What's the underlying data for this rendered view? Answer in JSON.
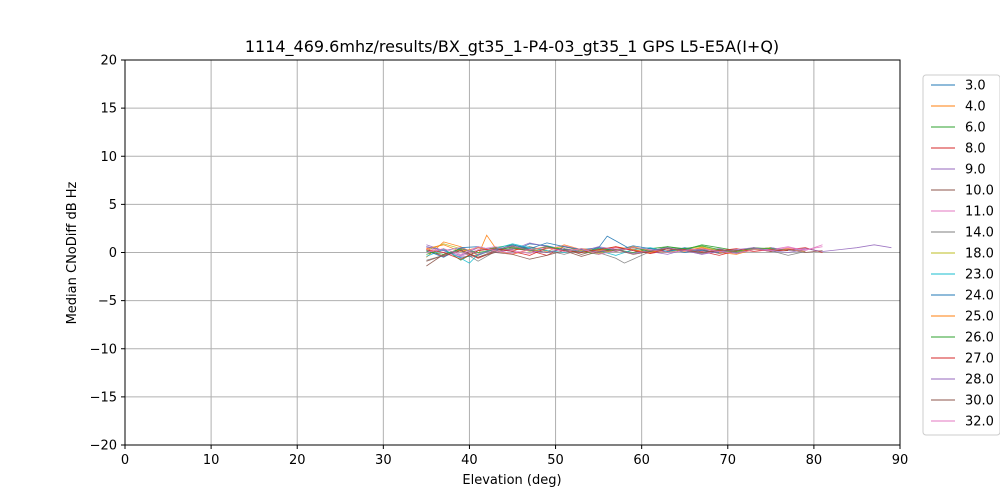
{
  "chart_data": {
    "type": "line",
    "title": "1114_469.6mhz/results/BX_gt35_1-P4-03_gt35_1 GPS L5-E5A(I+Q)",
    "xlabel": "Elevation (deg)",
    "ylabel": "Median CNoDiff dB Hz",
    "xlim": [
      0,
      90
    ],
    "ylim": [
      -20,
      20
    ],
    "xticks": [
      "0",
      "10",
      "20",
      "30",
      "40",
      "50",
      "60",
      "70",
      "80",
      "90"
    ],
    "yticks": [
      "20",
      "15",
      "10",
      "5",
      "0",
      "−5",
      "−10",
      "−15",
      "−20"
    ],
    "grid": true,
    "legend_position": "right, outside plot",
    "series": [
      {
        "name": "3.0",
        "color": "#1f77b4",
        "x": [
          35,
          37,
          39,
          41,
          43,
          45,
          47,
          49,
          51,
          53,
          55,
          56,
          57,
          59,
          61,
          63,
          65,
          67,
          69,
          71,
          73,
          75,
          77
        ],
        "y": [
          0.6,
          0.2,
          -0.5,
          -0.3,
          0.4,
          0.1,
          0.9,
          0.7,
          0.3,
          0.0,
          0.5,
          1.7,
          1.2,
          0.2,
          0.1,
          0.4,
          0.0,
          0.3,
          0.2,
          -0.1,
          0.3,
          0.5,
          0.2
        ]
      },
      {
        "name": "4.0",
        "color": "#ff7f0e",
        "x": [
          35,
          37,
          39,
          41,
          42,
          43,
          45,
          47,
          49,
          51,
          53,
          55,
          57,
          59,
          61,
          63,
          65,
          67,
          69,
          71,
          73,
          75,
          77,
          79
        ],
        "y": [
          -0.5,
          1.1,
          0.6,
          -0.3,
          1.8,
          0.5,
          0.2,
          0.6,
          0.1,
          0.8,
          0.3,
          0.0,
          0.2,
          0.6,
          0.2,
          0.4,
          0.1,
          0.5,
          0.0,
          -0.2,
          0.3,
          0.2,
          0.4,
          0.1
        ]
      },
      {
        "name": "6.0",
        "color": "#2ca02c",
        "x": [
          35,
          37,
          39,
          41,
          43,
          45,
          47,
          49,
          51,
          53,
          55,
          57,
          59,
          61,
          63,
          65,
          67,
          69,
          71,
          73
        ],
        "y": [
          -0.2,
          0.4,
          -0.8,
          0.2,
          0.5,
          0.8,
          0.3,
          0.0,
          0.4,
          0.1,
          -0.2,
          0.3,
          0.0,
          0.4,
          0.6,
          0.3,
          0.8,
          0.5,
          0.2,
          0.4
        ]
      },
      {
        "name": "8.0",
        "color": "#d62728",
        "x": [
          35,
          37,
          39,
          41,
          43,
          45,
          47,
          49,
          51,
          53,
          55,
          57,
          59,
          61,
          63,
          65,
          67,
          69,
          71,
          73,
          75,
          77,
          79,
          81
        ],
        "y": [
          0.3,
          -0.4,
          0.2,
          -0.6,
          0.1,
          0.4,
          0.2,
          -0.3,
          0.6,
          0.2,
          0.0,
          0.5,
          0.3,
          -0.1,
          0.2,
          0.4,
          0.1,
          -0.3,
          0.2,
          0.4,
          0.1,
          0.3,
          0.5,
          0.0
        ]
      },
      {
        "name": "9.0",
        "color": "#9467bd",
        "x": [
          35,
          37,
          39,
          41,
          43,
          45,
          47,
          49,
          51,
          53,
          55,
          57,
          59,
          61,
          63,
          65,
          67,
          69,
          71,
          73,
          75,
          77,
          79,
          81,
          83,
          85,
          87,
          89
        ],
        "y": [
          0.8,
          0.2,
          -0.3,
          0.5,
          0.0,
          0.3,
          1.0,
          0.6,
          0.2,
          0.4,
          0.0,
          0.3,
          0.5,
          0.1,
          -0.2,
          0.3,
          0.2,
          0.4,
          0.0,
          0.3,
          0.5,
          0.2,
          0.4,
          0.1,
          0.3,
          0.5,
          0.8,
          0.5
        ]
      },
      {
        "name": "10.0",
        "color": "#8c564b",
        "x": [
          35,
          37,
          39,
          41,
          43,
          45,
          47,
          49,
          51,
          53,
          55,
          57,
          59,
          61,
          63,
          65,
          67,
          69,
          71,
          73,
          75,
          77,
          79,
          81
        ],
        "y": [
          -1.4,
          -0.2,
          0.3,
          -0.5,
          0.2,
          0.6,
          0.3,
          0.0,
          0.4,
          -0.2,
          0.3,
          0.1,
          0.5,
          0.2,
          0.0,
          0.4,
          0.3,
          -0.1,
          0.2,
          0.4,
          0.1,
          0.3,
          0.0,
          0.2
        ]
      },
      {
        "name": "11.0",
        "color": "#e377c2",
        "x": [
          35,
          37,
          39,
          41,
          43,
          45,
          47,
          49,
          51,
          53,
          55,
          57,
          59,
          61,
          63,
          65,
          67,
          69,
          71,
          73,
          75,
          77,
          79,
          81
        ],
        "y": [
          0.5,
          0.0,
          -0.4,
          0.3,
          0.6,
          0.2,
          -0.1,
          0.4,
          0.7,
          0.3,
          0.1,
          0.5,
          0.2,
          0.0,
          0.4,
          0.2,
          -0.2,
          0.3,
          0.1,
          0.5,
          0.3,
          0.6,
          0.2,
          0.8
        ]
      },
      {
        "name": "14.0",
        "color": "#7f7f7f",
        "x": [
          35,
          37,
          39,
          41,
          43,
          45,
          47,
          49,
          51,
          53,
          55,
          57,
          58,
          59,
          61,
          63,
          65,
          67,
          69,
          71,
          73,
          75,
          77,
          79
        ],
        "y": [
          -0.8,
          -0.3,
          0.2,
          -0.9,
          0.1,
          0.4,
          0.6,
          0.2,
          -0.2,
          0.3,
          0.0,
          -0.6,
          -1.1,
          -0.7,
          0.1,
          0.4,
          0.2,
          -0.1,
          0.3,
          0.0,
          0.4,
          0.2,
          -0.3,
          0.1
        ]
      },
      {
        "name": "18.0",
        "color": "#bcbd22",
        "x": [
          35,
          37,
          39,
          41,
          43,
          45,
          47,
          49,
          51,
          53,
          55,
          57,
          59,
          61,
          63,
          65,
          67,
          69,
          71,
          73,
          75
        ],
        "y": [
          0.2,
          0.9,
          0.4,
          -0.2,
          0.3,
          0.7,
          0.1,
          0.4,
          0.6,
          0.2,
          -0.1,
          0.3,
          0.5,
          0.2,
          0.0,
          0.4,
          0.6,
          0.2,
          0.1,
          0.3,
          0.5
        ]
      },
      {
        "name": "23.0",
        "color": "#17becf",
        "x": [
          35,
          37,
          39,
          40,
          41,
          43,
          45,
          47,
          49,
          51,
          53,
          55,
          57,
          59,
          61,
          63,
          65,
          67
        ],
        "y": [
          -0.4,
          0.3,
          -0.6,
          -1.1,
          -0.2,
          0.4,
          0.9,
          0.5,
          0.2,
          0.0,
          0.4,
          0.2,
          -0.3,
          0.3,
          0.5,
          0.1,
          0.4,
          0.0
        ]
      },
      {
        "name": "24.0",
        "color": "#1f77b4",
        "x": [
          35,
          37,
          39,
          41,
          43,
          45,
          47,
          49,
          51,
          53,
          55,
          57,
          59,
          61,
          63,
          65,
          67,
          69
        ],
        "y": [
          0.2,
          -0.5,
          0.5,
          0.6,
          0.2,
          0.8,
          0.4,
          1.0,
          0.6,
          0.3,
          0.5,
          0.2,
          0.7,
          0.4,
          0.1,
          0.5,
          0.2,
          0.0
        ]
      },
      {
        "name": "25.0",
        "color": "#ff7f0e",
        "x": [
          35,
          37,
          39,
          41,
          43,
          45,
          47,
          49,
          51,
          53,
          55,
          57,
          59,
          61,
          63,
          65,
          67,
          69,
          71
        ],
        "y": [
          0.4,
          0.8,
          0.1,
          0.5,
          0.2,
          -0.2,
          0.3,
          0.6,
          0.1,
          0.4,
          0.2,
          0.6,
          0.3,
          0.0,
          0.4,
          0.2,
          0.5,
          0.1,
          0.3
        ]
      },
      {
        "name": "26.0",
        "color": "#2ca02c",
        "x": [
          35,
          37,
          39,
          41,
          43,
          45,
          47,
          49,
          51,
          53,
          55,
          57,
          59,
          61,
          63,
          65,
          67,
          69,
          71,
          73,
          75,
          77
        ],
        "y": [
          0.1,
          -0.2,
          0.4,
          0.0,
          0.3,
          0.5,
          0.2,
          0.6,
          0.3,
          0.0,
          0.4,
          0.2,
          0.5,
          0.1,
          0.6,
          0.4,
          0.7,
          0.3,
          0.1,
          0.5,
          0.4,
          0.2
        ]
      },
      {
        "name": "27.0",
        "color": "#d62728",
        "x": [
          35,
          37,
          39,
          41,
          43,
          45,
          47,
          49,
          51,
          53,
          55,
          57,
          59,
          61,
          63,
          65,
          67,
          69,
          71,
          73,
          75,
          77
        ],
        "y": [
          0.3,
          0.0,
          -0.7,
          0.2,
          0.4,
          0.1,
          -0.3,
          0.5,
          0.2,
          0.0,
          0.3,
          0.6,
          0.2,
          -0.1,
          0.4,
          0.3,
          0.0,
          0.2,
          0.4,
          0.1,
          0.3,
          0.2
        ]
      },
      {
        "name": "28.0",
        "color": "#9467bd",
        "x": [
          35,
          37,
          39,
          41,
          43,
          45,
          47,
          49,
          51,
          53,
          55,
          57,
          59,
          61,
          63,
          65,
          67,
          69,
          71,
          73,
          75,
          77,
          79
        ],
        "y": [
          0.6,
          0.2,
          0.5,
          -0.2,
          0.3,
          0.7,
          0.2,
          0.0,
          0.4,
          0.1,
          0.6,
          0.3,
          -0.1,
          0.2,
          0.5,
          0.2,
          -0.2,
          0.1,
          0.3,
          0.5,
          0.2,
          0.0,
          0.3
        ]
      },
      {
        "name": "30.0",
        "color": "#8c564b",
        "x": [
          35,
          37,
          39,
          41,
          43,
          45,
          47,
          49,
          51,
          53,
          55,
          57,
          59,
          61,
          63,
          65,
          67,
          69,
          71
        ],
        "y": [
          -0.9,
          -0.3,
          0.2,
          -0.5,
          0.0,
          -0.2,
          -0.7,
          -0.3,
          0.2,
          -0.4,
          0.1,
          0.3,
          -0.2,
          0.1,
          0.4,
          0.2,
          0.0,
          0.3,
          0.1
        ]
      },
      {
        "name": "32.0",
        "color": "#e377c2",
        "x": [
          35,
          37,
          39,
          41,
          43,
          45,
          47,
          49,
          51,
          53,
          55,
          57,
          59,
          61,
          63,
          65,
          67,
          69,
          71,
          73,
          75,
          77,
          79,
          81
        ],
        "y": [
          0.0,
          0.4,
          -0.2,
          0.6,
          0.2,
          -0.1,
          0.3,
          0.5,
          0.1,
          0.4,
          -0.2,
          0.2,
          0.5,
          0.3,
          0.0,
          0.2,
          0.4,
          0.1,
          -0.1,
          0.3,
          0.2,
          0.5,
          0.3,
          0.6
        ]
      }
    ]
  }
}
